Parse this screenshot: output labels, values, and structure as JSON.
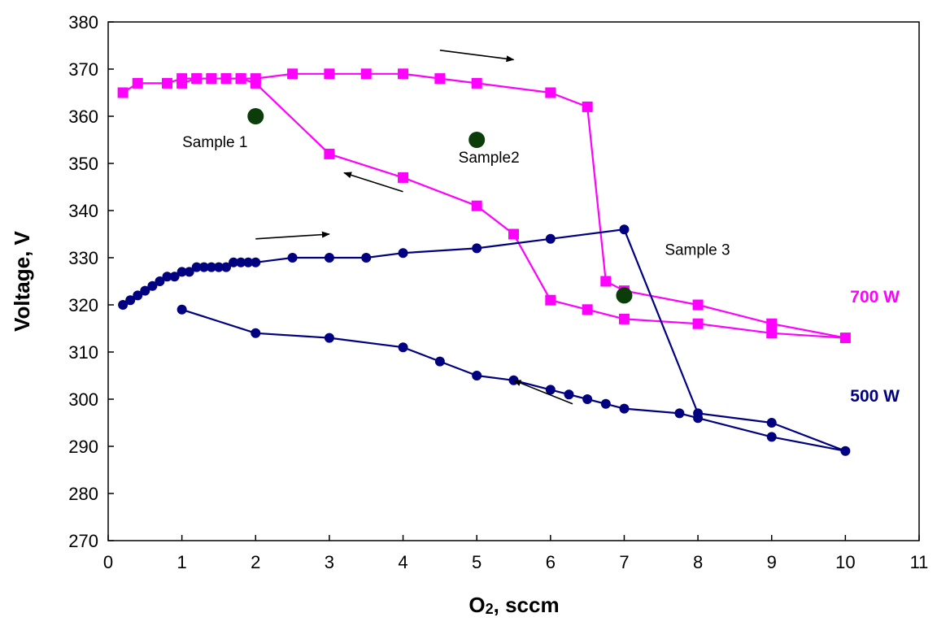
{
  "chart_data": {
    "type": "line",
    "title": "",
    "xlabel_main": "O",
    "xlabel_sub": "2",
    "xlabel_rest": ", sccm",
    "ylabel": "Voltage, V",
    "xlim": [
      0,
      11
    ],
    "ylim": [
      270,
      380
    ],
    "xticks": [
      0,
      1,
      2,
      3,
      4,
      5,
      6,
      7,
      8,
      9,
      10,
      11
    ],
    "yticks": [
      270,
      280,
      290,
      300,
      310,
      320,
      330,
      340,
      350,
      360,
      370,
      380
    ],
    "grid": false,
    "legend": "none",
    "series": [
      {
        "name": "700 W",
        "color": "#ff00ff",
        "marker": "square",
        "x": [
          0.2,
          0.4,
          0.8,
          1.0,
          1.2,
          1.4,
          1.6,
          1.8,
          2.0,
          2.5,
          3.0,
          3.5,
          4.0,
          4.5,
          5.0,
          6.0,
          6.5,
          6.75,
          7.0,
          8.0,
          9.0,
          10.0,
          9.0,
          8.0,
          7.0,
          6.5,
          6.0,
          5.5,
          5.0,
          4.0,
          3.0,
          2.0,
          1.8,
          1.6,
          1.4,
          1.2,
          1.0
        ],
        "y": [
          365,
          367,
          367,
          368,
          368,
          368,
          368,
          368,
          368,
          369,
          369,
          369,
          369,
          368,
          367,
          365,
          362,
          325,
          323,
          320,
          316,
          313,
          314,
          316,
          317,
          319,
          321,
          335,
          341,
          347,
          352,
          367,
          368,
          368,
          368,
          368,
          367
        ]
      },
      {
        "name": "500 W",
        "color": "#000080",
        "marker": "circle",
        "x": [
          0.2,
          0.3,
          0.4,
          0.5,
          0.6,
          0.7,
          0.8,
          0.9,
          1.0,
          1.1,
          1.2,
          1.3,
          1.4,
          1.5,
          1.6,
          1.7,
          1.8,
          1.9,
          2.0,
          2.5,
          3.0,
          3.5,
          4.0,
          5.0,
          6.0,
          7.0,
          8.0,
          9.0,
          10.0,
          9.0,
          8.0,
          7.75,
          7.0,
          6.75,
          6.5,
          6.25,
          6.0,
          5.5,
          5.0,
          4.5,
          4.0,
          3.0,
          2.0,
          1.0
        ],
        "y": [
          320,
          321,
          322,
          323,
          324,
          325,
          326,
          326,
          327,
          327,
          328,
          328,
          328,
          328,
          328,
          329,
          329,
          329,
          329,
          330,
          330,
          330,
          331,
          332,
          334,
          336,
          297,
          295,
          289,
          292,
          296,
          297,
          298,
          299,
          300,
          301,
          302,
          304,
          305,
          308,
          311,
          313,
          314,
          319
        ]
      }
    ],
    "samples": [
      {
        "label": "Sample 1",
        "x": 2.0,
        "y": 360
      },
      {
        "label": "Sample2",
        "x": 5.0,
        "y": 355
      },
      {
        "label": "Sample 3",
        "x": 7.0,
        "y": 322
      }
    ],
    "sample_color": "#0a3d0a",
    "arrows": [
      {
        "from": [
          4.5,
          374
        ],
        "to": [
          5.5,
          372
        ],
        "color": "#000"
      },
      {
        "from": [
          4.0,
          344
        ],
        "to": [
          3.2,
          348
        ],
        "color": "#000"
      },
      {
        "from": [
          2.0,
          334
        ],
        "to": [
          3.0,
          335
        ],
        "color": "#000"
      },
      {
        "from": [
          6.3,
          299
        ],
        "to": [
          5.5,
          304
        ],
        "color": "#000"
      }
    ]
  }
}
